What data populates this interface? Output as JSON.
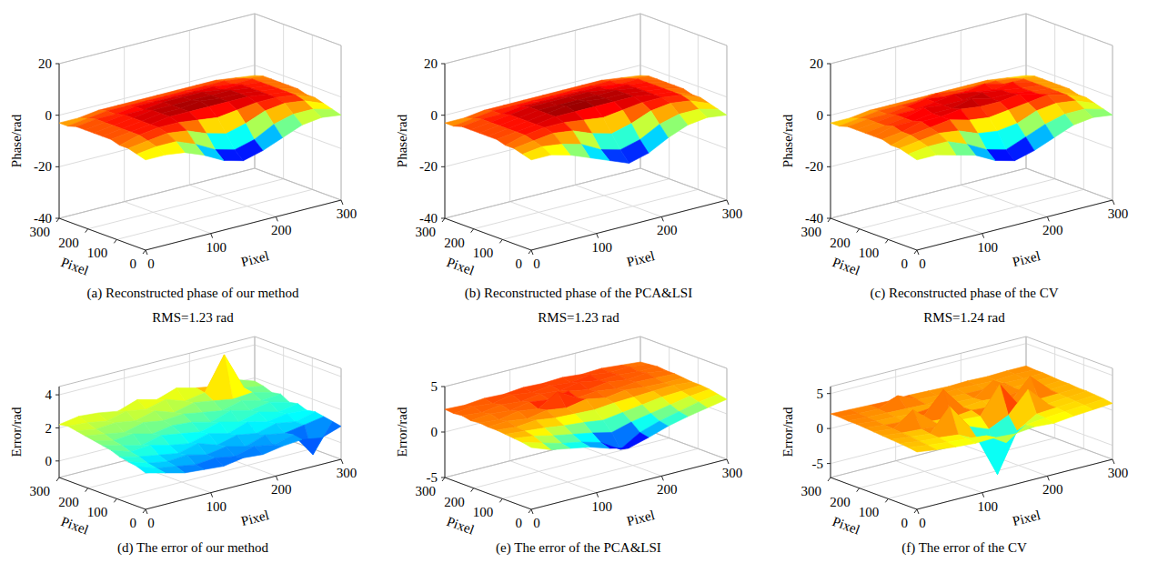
{
  "chart_data": [
    {
      "type": "surface",
      "title": "(a) Reconstructed phase of our method",
      "x_label": "Pixel",
      "y_label": "Pixel",
      "z_label": "Phase/rad",
      "x": [
        0,
        30,
        60,
        90,
        120,
        150,
        180,
        210,
        240,
        270,
        300
      ],
      "y": [
        0,
        30,
        60,
        90,
        120,
        150,
        180,
        210,
        240,
        270,
        300
      ],
      "z": [
        [
          -5,
          -5,
          -6,
          -9,
          -13,
          -15,
          -13,
          -10,
          -7,
          -6,
          -7
        ],
        [
          -4,
          -3,
          -3,
          -6,
          -10,
          -12,
          -10,
          -6,
          -4,
          -4,
          -6
        ],
        [
          -3,
          -2,
          -1,
          -2,
          -5,
          -7,
          -5,
          -2,
          -1,
          -2,
          -5
        ],
        [
          -3,
          -1,
          0,
          0,
          -1,
          -2,
          -1,
          0,
          0,
          -1,
          -4
        ],
        [
          -2,
          -1,
          0,
          1,
          1,
          1,
          1,
          1,
          0,
          -1,
          -4
        ],
        [
          -2,
          -1,
          0,
          1,
          1,
          2,
          1,
          1,
          0,
          -1,
          -3
        ],
        [
          -2,
          -1,
          0,
          1,
          1,
          1,
          1,
          1,
          0,
          -1,
          -3
        ],
        [
          -2,
          -1,
          0,
          0,
          1,
          1,
          1,
          0,
          0,
          -1,
          -3
        ],
        [
          -2,
          -1,
          -1,
          0,
          0,
          0,
          0,
          0,
          -1,
          -1,
          -3
        ],
        [
          -3,
          -2,
          -1,
          -1,
          -1,
          -1,
          -1,
          -1,
          -1,
          -2,
          -3
        ],
        [
          -3,
          -3,
          -2,
          -2,
          -2,
          -2,
          -2,
          -2,
          -2,
          -3,
          -4
        ]
      ],
      "xlim": [
        0,
        300
      ],
      "ylim": [
        0,
        300
      ],
      "zlim": [
        -40,
        20
      ],
      "xticks": [
        0,
        100,
        200,
        300
      ],
      "yticks": [
        0,
        100,
        200,
        300
      ],
      "zticks": [
        -40,
        -20,
        0,
        20
      ],
      "grid": true
    },
    {
      "type": "surface",
      "title": "(b) Reconstructed phase of the PCA&LSI",
      "x_label": "Pixel",
      "y_label": "Pixel",
      "z_label": "Phase/rad",
      "x": [
        0,
        30,
        60,
        90,
        120,
        150,
        180,
        210,
        240,
        270,
        300
      ],
      "y": [
        0,
        30,
        60,
        90,
        120,
        150,
        180,
        210,
        240,
        270,
        300
      ],
      "z": [
        [
          -5,
          -5,
          -7,
          -10,
          -13,
          -16,
          -14,
          -10,
          -7,
          -6,
          -7
        ],
        [
          -4,
          -3,
          -4,
          -6,
          -10,
          -12,
          -10,
          -6,
          -4,
          -4,
          -6
        ],
        [
          -3,
          -2,
          -1,
          -2,
          -5,
          -7,
          -5,
          -2,
          -1,
          -2,
          -5
        ],
        [
          -3,
          -1,
          0,
          0,
          -1,
          -2,
          -1,
          0,
          0,
          -1,
          -4
        ],
        [
          -2,
          -1,
          0,
          1,
          1,
          1,
          1,
          1,
          0,
          -1,
          -4
        ],
        [
          -2,
          -1,
          0,
          1,
          2,
          2,
          1,
          1,
          0,
          -1,
          -3
        ],
        [
          -2,
          -1,
          0,
          1,
          1,
          1,
          1,
          1,
          0,
          -1,
          -3
        ],
        [
          -2,
          -1,
          0,
          1,
          1,
          1,
          1,
          0,
          0,
          -1,
          -3
        ],
        [
          -2,
          -1,
          -1,
          0,
          0,
          0,
          0,
          0,
          -1,
          -1,
          -3
        ],
        [
          -3,
          -2,
          -1,
          -1,
          -1,
          -1,
          -1,
          -1,
          -1,
          -2,
          -3
        ],
        [
          -3,
          -3,
          -2,
          -2,
          -2,
          -2,
          -2,
          -2,
          -2,
          -3,
          -4
        ]
      ],
      "xlim": [
        0,
        300
      ],
      "ylim": [
        0,
        300
      ],
      "zlim": [
        -40,
        20
      ],
      "xticks": [
        0,
        100,
        200,
        300
      ],
      "yticks": [
        0,
        100,
        200,
        300
      ],
      "zticks": [
        -40,
        -20,
        0,
        20
      ],
      "grid": true
    },
    {
      "type": "surface",
      "title": "(c) Reconstructed phase of the CV",
      "x_label": "Pixel",
      "y_label": "Pixel",
      "z_label": "Phase/rad",
      "x": [
        0,
        30,
        60,
        90,
        120,
        150,
        180,
        210,
        240,
        270,
        300
      ],
      "y": [
        0,
        30,
        60,
        90,
        120,
        150,
        180,
        210,
        240,
        270,
        300
      ],
      "z": [
        [
          -5,
          -5,
          -7,
          -9,
          -13,
          -15,
          -13,
          -10,
          -7,
          -6,
          -7
        ],
        [
          -4,
          -3,
          -3,
          -6,
          -10,
          -12,
          -9,
          -6,
          -4,
          -4,
          -6
        ],
        [
          -3,
          -2,
          -1,
          -2,
          -5,
          -6,
          -5,
          -2,
          -1,
          -2,
          -5
        ],
        [
          -3,
          -1,
          0,
          1,
          -1,
          -2,
          -1,
          0,
          1,
          -1,
          -4
        ],
        [
          -2,
          -1,
          1,
          1,
          2,
          1,
          1,
          2,
          0,
          -1,
          -4
        ],
        [
          -2,
          0,
          0,
          1,
          1,
          3,
          1,
          1,
          0,
          -1,
          -3
        ],
        [
          -2,
          -1,
          0,
          2,
          1,
          1,
          2,
          1,
          0,
          -1,
          -3
        ],
        [
          -2,
          -1,
          0,
          0,
          1,
          2,
          1,
          0,
          1,
          -1,
          -3
        ],
        [
          -2,
          -1,
          -1,
          0,
          1,
          0,
          0,
          1,
          -1,
          -1,
          -3
        ],
        [
          -3,
          -2,
          -1,
          -1,
          -1,
          0,
          -1,
          -1,
          -1,
          -2,
          -3
        ],
        [
          -3,
          -3,
          -2,
          -2,
          -2,
          -2,
          -2,
          -2,
          -2,
          -3,
          -4
        ]
      ],
      "xlim": [
        0,
        300
      ],
      "ylim": [
        0,
        300
      ],
      "zlim": [
        -40,
        20
      ],
      "xticks": [
        0,
        100,
        200,
        300
      ],
      "yticks": [
        0,
        100,
        200,
        300
      ],
      "zticks": [
        -40,
        -20,
        0,
        20
      ],
      "grid": true
    },
    {
      "type": "surface",
      "title": "(d) The error of our method",
      "subtitle": "RMS=1.23 rad",
      "x_label": "Pixel",
      "y_label": "Pixel",
      "z_label": "Error/rad",
      "x": [
        0,
        30,
        60,
        90,
        120,
        150,
        180,
        210,
        240,
        270,
        300
      ],
      "y": [
        0,
        30,
        60,
        90,
        120,
        150,
        180,
        210,
        240,
        270,
        300
      ],
      "z": [
        [
          1.2,
          0.9,
          0.6,
          0.5,
          0.4,
          0.6,
          0.5,
          0.7,
          0.8,
          0.6,
          1.0
        ],
        [
          1.4,
          1.0,
          0.8,
          0.6,
          0.7,
          0.5,
          0.8,
          0.6,
          0.9,
          -0.6,
          1.1
        ],
        [
          1.5,
          1.1,
          0.9,
          1.0,
          0.7,
          0.9,
          0.6,
          1.0,
          0.8,
          1.0,
          1.2
        ],
        [
          1.6,
          1.3,
          1.1,
          0.9,
          1.2,
          0.8,
          1.1,
          0.9,
          1.2,
          1.0,
          1.3
        ],
        [
          1.8,
          1.4,
          1.5,
          1.2,
          1.0,
          1.3,
          1.0,
          1.4,
          1.1,
          1.3,
          1.2
        ],
        [
          1.9,
          1.6,
          1.3,
          1.6,
          1.4,
          1.2,
          1.5,
          1.2,
          1.5,
          1.2,
          1.4
        ],
        [
          2.0,
          1.7,
          1.8,
          1.5,
          1.7,
          1.6,
          1.3,
          1.7,
          1.4,
          1.6,
          1.3
        ],
        [
          2.1,
          1.9,
          1.7,
          2.0,
          1.8,
          1.9,
          1.7,
          1.5,
          1.8,
          1.5,
          1.6
        ],
        [
          2.2,
          2.0,
          2.1,
          1.9,
          2.2,
          1.8,
          2.1,
          1.9,
          1.7,
          1.8,
          1.5
        ],
        [
          2.3,
          2.2,
          2.0,
          2.3,
          2.1,
          2.4,
          2.0,
          2.2,
          4.2,
          1.9,
          1.7
        ],
        [
          2.2,
          2.4,
          2.3,
          2.1,
          2.5,
          2.2,
          2.6,
          2.3,
          2.1,
          2.2,
          1.8
        ]
      ],
      "xlim": [
        0,
        300
      ],
      "ylim": [
        0,
        300
      ],
      "zlim": [
        -1,
        4.5
      ],
      "xticks": [
        0,
        100,
        200,
        300
      ],
      "yticks": [
        0,
        100,
        200,
        300
      ],
      "zticks": [
        0,
        2,
        4
      ],
      "grid": true
    },
    {
      "type": "surface",
      "title": "(e) The error of the PCA&LSI",
      "subtitle": "RMS=1.23 rad",
      "x_label": "Pixel",
      "y_label": "Pixel",
      "z_label": "Error/rad",
      "x": [
        0,
        30,
        60,
        90,
        120,
        150,
        180,
        210,
        240,
        270,
        300
      ],
      "y": [
        0,
        30,
        60,
        90,
        120,
        150,
        180,
        210,
        240,
        270,
        300
      ],
      "z": [
        [
          1.8,
          1.0,
          0.6,
          0.2,
          -0.5,
          -1.0,
          -0.4,
          0.3,
          0.8,
          1.2,
          1.6
        ],
        [
          2.0,
          1.4,
          0.8,
          0.4,
          -0.2,
          -1.5,
          -0.2,
          0.5,
          1.0,
          1.5,
          1.8
        ],
        [
          2.1,
          1.8,
          1.3,
          0.9,
          0.5,
          0.0,
          0.6,
          1.0,
          1.4,
          1.8,
          2.0
        ],
        [
          2.2,
          2.0,
          1.8,
          1.5,
          1.3,
          1.0,
          1.3,
          1.6,
          1.9,
          2.0,
          2.1
        ],
        [
          2.3,
          2.1,
          2.3,
          2.0,
          1.9,
          1.8,
          2.0,
          2.1,
          2.2,
          2.3,
          2.1
        ],
        [
          2.3,
          2.4,
          2.1,
          2.5,
          2.2,
          2.6,
          2.2,
          2.5,
          2.3,
          2.2,
          2.2
        ],
        [
          2.4,
          2.2,
          2.6,
          2.3,
          3.6,
          2.4,
          2.6,
          2.3,
          2.5,
          2.4,
          2.3
        ],
        [
          2.3,
          2.5,
          2.3,
          2.7,
          2.4,
          2.8,
          2.4,
          2.7,
          2.4,
          2.6,
          2.3
        ],
        [
          2.5,
          2.3,
          2.6,
          2.4,
          2.7,
          2.5,
          2.9,
          2.5,
          2.6,
          2.4,
          2.4
        ],
        [
          2.4,
          2.6,
          2.4,
          2.8,
          2.5,
          2.7,
          2.5,
          2.8,
          2.5,
          2.6,
          2.3
        ],
        [
          2.5,
          2.4,
          2.6,
          2.5,
          2.7,
          2.6,
          2.7,
          2.5,
          2.6,
          2.4,
          2.2
        ]
      ],
      "xlim": [
        0,
        300
      ],
      "ylim": [
        0,
        300
      ],
      "zlim": [
        -5,
        5
      ],
      "xticks": [
        0,
        100,
        200,
        300
      ],
      "yticks": [
        0,
        100,
        200,
        300
      ],
      "zticks": [
        -5,
        0,
        5
      ],
      "grid": true
    },
    {
      "type": "surface",
      "title": "(f) The error of the CV",
      "subtitle": "RMS=1.24 rad",
      "x_label": "Pixel",
      "y_label": "Pixel",
      "z_label": "Error/rad",
      "x": [
        0,
        30,
        60,
        90,
        120,
        150,
        180,
        210,
        240,
        270,
        300
      ],
      "y": [
        0,
        30,
        60,
        90,
        120,
        150,
        180,
        210,
        240,
        270,
        300
      ],
      "z": [
        [
          1.2,
          0.8,
          0.5,
          0.3,
          0.4,
          0.2,
          0.5,
          0.3,
          0.6,
          0.8,
          1.0
        ],
        [
          1.4,
          1.0,
          0.7,
          0.5,
          0.2,
          -1.5,
          0.3,
          0.6,
          0.8,
          1.0,
          1.2
        ],
        [
          1.5,
          1.1,
          0.9,
          0.6,
          -0.8,
          -6.5,
          -1.0,
          0.7,
          0.9,
          1.1,
          1.3
        ],
        [
          1.6,
          1.3,
          1.0,
          4.2,
          0.6,
          -0.5,
          0.8,
          3.8,
          1.0,
          1.2,
          1.4
        ],
        [
          1.7,
          1.4,
          1.2,
          1.0,
          1.1,
          0.9,
          4.8,
          1.0,
          1.2,
          1.3,
          1.4
        ],
        [
          1.8,
          1.5,
          3.5,
          1.2,
          1.0,
          1.3,
          1.1,
          1.2,
          4.0,
          1.4,
          1.5
        ],
        [
          1.9,
          1.6,
          1.4,
          1.5,
          4.5,
          1.3,
          1.5,
          1.3,
          1.5,
          1.4,
          1.5
        ],
        [
          2.0,
          1.7,
          1.6,
          1.4,
          1.6,
          1.5,
          1.4,
          3.2,
          1.5,
          1.6,
          1.6
        ],
        [
          2.0,
          1.8,
          1.7,
          1.6,
          1.5,
          1.7,
          1.6,
          1.5,
          1.7,
          1.6,
          1.7
        ],
        [
          2.1,
          1.9,
          1.8,
          3.0,
          1.7,
          1.6,
          1.8,
          1.7,
          1.6,
          1.8,
          1.7
        ],
        [
          2.1,
          2.0,
          1.9,
          1.8,
          1.9,
          1.8,
          1.7,
          1.8,
          1.7,
          1.8,
          1.8
        ]
      ],
      "xlim": [
        0,
        300
      ],
      "ylim": [
        0,
        300
      ],
      "zlim": [
        -7,
        6
      ],
      "xticks": [
        0,
        100,
        200,
        300
      ],
      "yticks": [
        0,
        100,
        200,
        300
      ],
      "zticks": [
        -5,
        0,
        5
      ],
      "grid": true
    }
  ]
}
